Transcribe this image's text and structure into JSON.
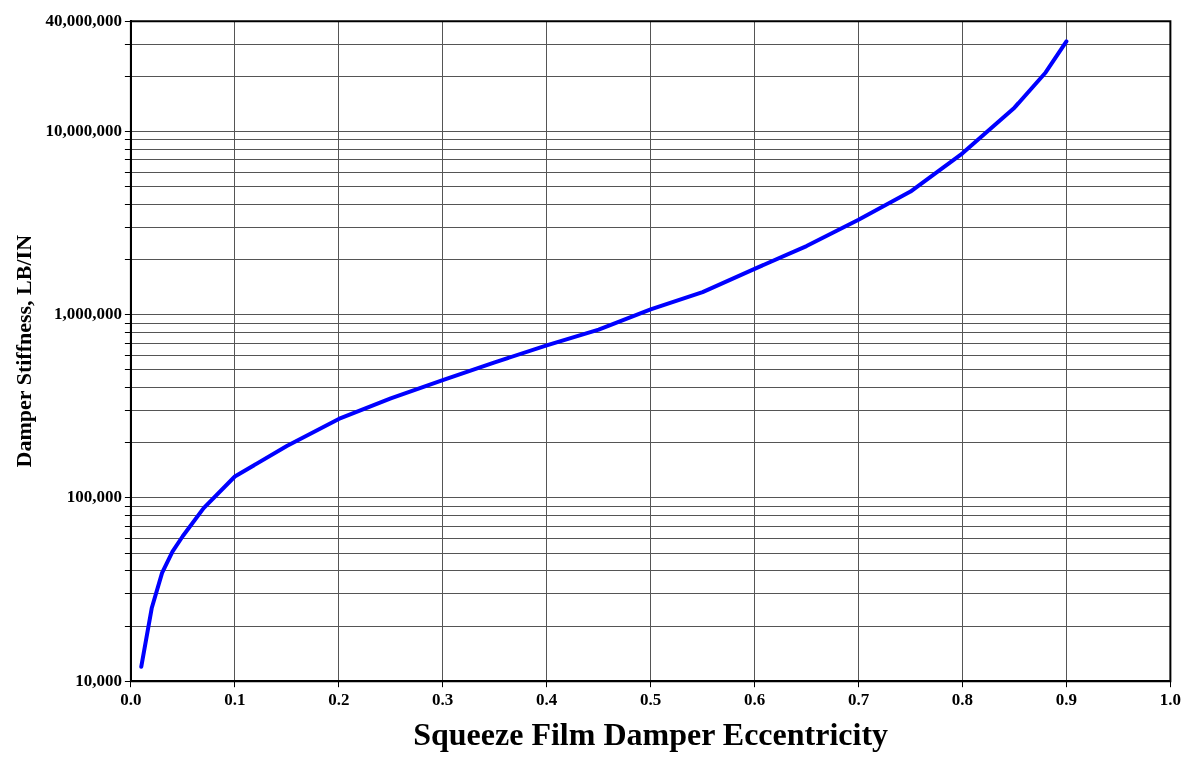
{
  "chart_data": {
    "type": "line",
    "xlabel": "Squeeze Film Damper Eccentricity",
    "ylabel": "Damper Stiffness, LB/IN",
    "x": [
      0.01,
      0.02,
      0.03,
      0.04,
      0.05,
      0.07,
      0.1,
      0.15,
      0.2,
      0.25,
      0.3,
      0.35,
      0.4,
      0.45,
      0.5,
      0.55,
      0.6,
      0.65,
      0.7,
      0.75,
      0.8,
      0.85,
      0.88,
      0.9
    ],
    "series": [
      {
        "color": "#0000ff",
        "values": [
          12000,
          25000,
          39000,
          51000,
          62000,
          88000,
          131000,
          192000,
          270000,
          350000,
          440000,
          550000,
          680000,
          830000,
          1070000,
          1330000,
          1780000,
          2370000,
          3300000,
          4700000,
          7600000,
          13500000,
          21000000,
          31000000
        ]
      }
    ],
    "log": "y",
    "xlim": [
      0,
      1
    ],
    "xticks": [
      {
        "value": 0,
        "label": "0.0"
      },
      0.1,
      0.2,
      0.3,
      0.4,
      0.5,
      0.6,
      0.7,
      0.8,
      0.9,
      {
        "value": 1,
        "label": "1.0"
      }
    ],
    "ylim": [
      10000,
      40000000
    ],
    "yticks": [
      {
        "value": 10000,
        "label": "10,000"
      },
      {
        "value": 20000,
        "label": null
      },
      {
        "value": 30000,
        "label": null
      },
      {
        "value": 40000,
        "label": null
      },
      {
        "value": 50000,
        "label": null
      },
      {
        "value": 60000,
        "label": null
      },
      {
        "value": 70000,
        "label": null
      },
      {
        "value": 80000,
        "label": null
      },
      {
        "value": 90000,
        "label": null
      },
      {
        "value": 100000,
        "label": "100,000"
      },
      {
        "value": 200000,
        "label": null
      },
      {
        "value": 300000,
        "label": null
      },
      {
        "value": 400000,
        "label": null
      },
      {
        "value": 500000,
        "label": null
      },
      {
        "value": 600000,
        "label": null
      },
      {
        "value": 700000,
        "label": null
      },
      {
        "value": 800000,
        "label": null
      },
      {
        "value": 900000,
        "label": null
      },
      {
        "value": 1000000,
        "label": "1,000,000"
      },
      {
        "value": 2000000,
        "label": null
      },
      {
        "value": 3000000,
        "label": null
      },
      {
        "value": 4000000,
        "label": null
      },
      {
        "value": 5000000,
        "label": null
      },
      {
        "value": 6000000,
        "label": null
      },
      {
        "value": 7000000,
        "label": null
      },
      {
        "value": 8000000,
        "label": null
      },
      {
        "value": 9000000,
        "label": null
      },
      {
        "value": 10000000,
        "label": "10,000,000"
      },
      {
        "value": 20000000,
        "label": null
      },
      {
        "value": 30000000,
        "label": null
      },
      {
        "value": 40000000,
        "label": "40,000,000"
      }
    ],
    "grid": true,
    "legend": false,
    "marker": "none",
    "line_style": "solid"
  }
}
